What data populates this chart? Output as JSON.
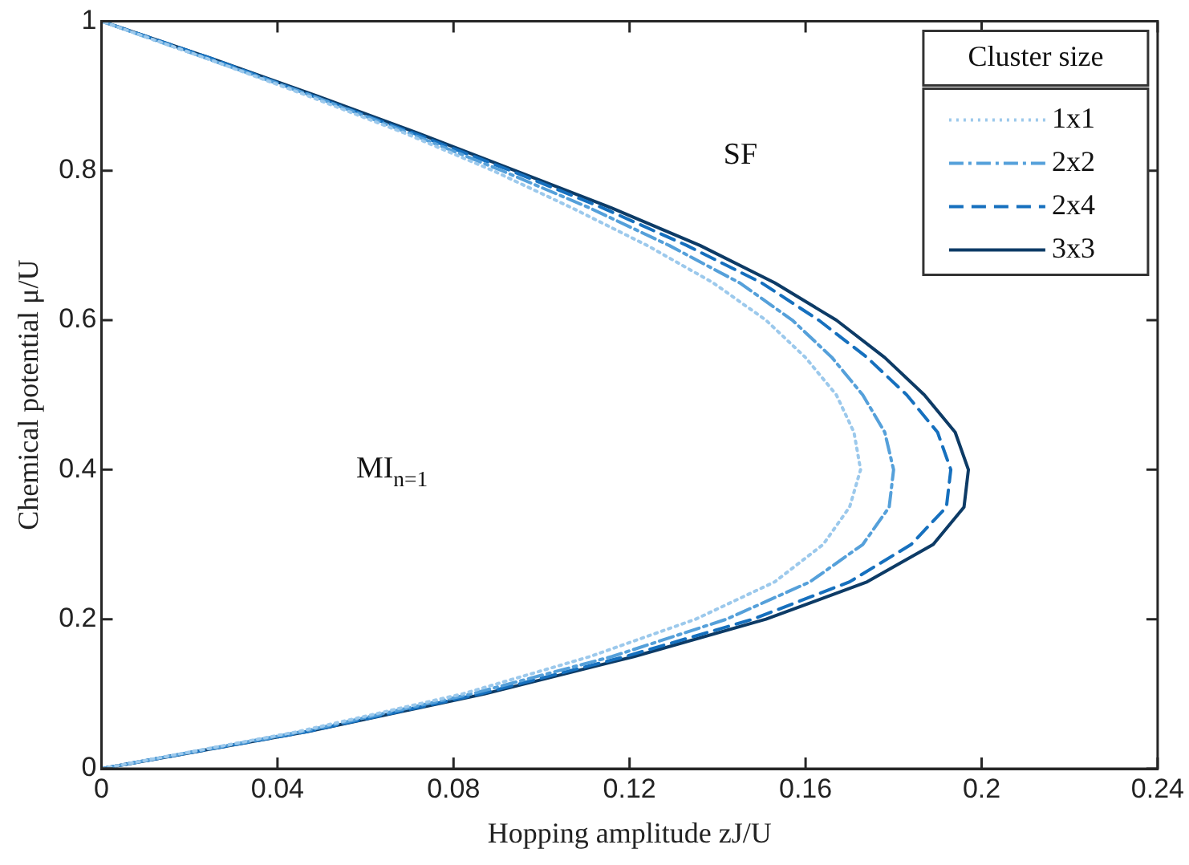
{
  "chart_data": {
    "type": "line",
    "xlabel": "Hopping amplitude zJ/U",
    "ylabel": "Chemical potential μ/U",
    "legend_title": "Cluster size",
    "legend": "top right",
    "grid": false,
    "marker": "none",
    "xlim": [
      0,
      0.24
    ],
    "xticks": [
      0,
      0.04,
      0.08,
      0.12,
      0.16,
      0.2,
      0.24
    ],
    "ylim": [
      0,
      1
    ],
    "yticks": [
      0,
      0.2,
      0.4,
      0.6,
      0.8,
      1
    ],
    "annotations": [
      "SF",
      "MI$_{n=1}$"
    ],
    "series": [
      {
        "name": "1x1",
        "color": "#9cc9ec",
        "line_style": "dotted",
        "x": [
          0,
          0.045,
          0.082,
          0.111,
          0.135,
          0.153,
          0.164,
          0.17,
          0.1725,
          0.171,
          0.167,
          0.16,
          0.151,
          0.139,
          0.124,
          0.107,
          0.089,
          0.069,
          0.047,
          0.024,
          0
        ],
        "values": [
          0,
          0.05,
          0.1,
          0.15,
          0.2,
          0.25,
          0.3,
          0.35,
          0.4,
          0.45,
          0.5,
          0.55,
          0.6,
          0.65,
          0.7,
          0.75,
          0.8,
          0.85,
          0.9,
          0.95,
          1
        ]
      },
      {
        "name": "2x2",
        "color": "#55a0da",
        "line_style": "dashdot",
        "x": [
          0,
          0.046,
          0.084,
          0.116,
          0.142,
          0.161,
          0.173,
          0.179,
          0.18,
          0.178,
          0.173,
          0.166,
          0.157,
          0.145,
          0.129,
          0.111,
          0.091,
          0.07,
          0.048,
          0.024,
          0
        ],
        "values": [
          0,
          0.05,
          0.1,
          0.15,
          0.2,
          0.25,
          0.3,
          0.35,
          0.4,
          0.45,
          0.5,
          0.55,
          0.6,
          0.65,
          0.7,
          0.75,
          0.8,
          0.85,
          0.9,
          0.95,
          1
        ]
      },
      {
        "name": "2x4",
        "color": "#1670be",
        "line_style": "dashed",
        "x": [
          0,
          0.047,
          0.086,
          0.119,
          0.148,
          0.17,
          0.184,
          0.192,
          0.193,
          0.19,
          0.183,
          0.174,
          0.163,
          0.15,
          0.133,
          0.114,
          0.093,
          0.071,
          0.048,
          0.025,
          0
        ],
        "values": [
          0,
          0.05,
          0.1,
          0.15,
          0.2,
          0.25,
          0.3,
          0.35,
          0.4,
          0.45,
          0.5,
          0.55,
          0.6,
          0.65,
          0.7,
          0.75,
          0.8,
          0.85,
          0.9,
          0.95,
          1
        ]
      },
      {
        "name": "3x3",
        "color": "#0d3b66",
        "line_style": "solid",
        "x": [
          0,
          0.047,
          0.087,
          0.121,
          0.151,
          0.174,
          0.189,
          0.196,
          0.197,
          0.194,
          0.187,
          0.178,
          0.167,
          0.153,
          0.136,
          0.116,
          0.094,
          0.072,
          0.049,
          0.025,
          0
        ],
        "values": [
          0,
          0.05,
          0.1,
          0.15,
          0.2,
          0.25,
          0.3,
          0.35,
          0.4,
          0.45,
          0.5,
          0.55,
          0.6,
          0.65,
          0.7,
          0.75,
          0.8,
          0.85,
          0.9,
          0.95,
          1
        ]
      }
    ]
  }
}
